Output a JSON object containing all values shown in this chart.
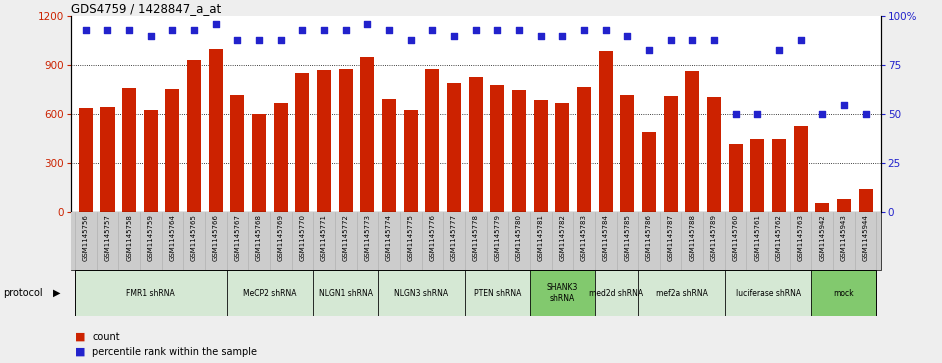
{
  "title": "GDS4759 / 1428847_a_at",
  "samples": [
    "GSM1145756",
    "GSM1145757",
    "GSM1145758",
    "GSM1145759",
    "GSM1145764",
    "GSM1145765",
    "GSM1145766",
    "GSM1145767",
    "GSM1145768",
    "GSM1145769",
    "GSM1145770",
    "GSM1145771",
    "GSM1145772",
    "GSM1145773",
    "GSM1145774",
    "GSM1145775",
    "GSM1145776",
    "GSM1145777",
    "GSM1145778",
    "GSM1145779",
    "GSM1145780",
    "GSM1145781",
    "GSM1145782",
    "GSM1145783",
    "GSM1145784",
    "GSM1145785",
    "GSM1145786",
    "GSM1145787",
    "GSM1145788",
    "GSM1145789",
    "GSM1145760",
    "GSM1145761",
    "GSM1145762",
    "GSM1145763",
    "GSM1145942",
    "GSM1145943",
    "GSM1145944"
  ],
  "counts": [
    638,
    648,
    762,
    626,
    755,
    930,
    1000,
    718,
    600,
    670,
    855,
    870,
    880,
    950,
    695,
    625,
    880,
    790,
    830,
    780,
    750,
    690,
    670,
    770,
    990,
    720,
    490,
    710,
    865,
    705,
    420,
    450,
    450,
    530,
    55,
    80,
    145
  ],
  "percentiles": [
    93,
    93,
    93,
    90,
    93,
    93,
    96,
    88,
    88,
    88,
    93,
    93,
    93,
    96,
    93,
    88,
    93,
    90,
    93,
    93,
    93,
    90,
    90,
    93,
    93,
    90,
    83,
    88,
    88,
    88,
    50,
    50,
    83,
    88,
    50,
    55,
    50
  ],
  "protocols": [
    {
      "label": "FMR1 shRNA",
      "start": 0,
      "end": 7,
      "color": "#d5e8d4"
    },
    {
      "label": "MeCP2 shRNA",
      "start": 7,
      "end": 11,
      "color": "#d5e8d4"
    },
    {
      "label": "NLGN1 shRNA",
      "start": 11,
      "end": 14,
      "color": "#d5e8d4"
    },
    {
      "label": "NLGN3 shRNA",
      "start": 14,
      "end": 18,
      "color": "#d5e8d4"
    },
    {
      "label": "PTEN shRNA",
      "start": 18,
      "end": 21,
      "color": "#d5e8d4"
    },
    {
      "label": "SHANK3\nshRNA",
      "start": 21,
      "end": 24,
      "color": "#82c96e"
    },
    {
      "label": "med2d shRNA",
      "start": 24,
      "end": 26,
      "color": "#d5e8d4"
    },
    {
      "label": "mef2a shRNA",
      "start": 26,
      "end": 30,
      "color": "#d5e8d4"
    },
    {
      "label": "luciferase shRNA",
      "start": 30,
      "end": 34,
      "color": "#d5e8d4"
    },
    {
      "label": "mock",
      "start": 34,
      "end": 37,
      "color": "#82c96e"
    }
  ],
  "bar_color": "#cc2200",
  "dot_color": "#2222cc",
  "ylim_left": [
    0,
    1200
  ],
  "ylim_right": [
    0,
    100
  ],
  "yticks_left": [
    0,
    300,
    600,
    900,
    1200
  ],
  "yticks_right": [
    0,
    25,
    50,
    75,
    100
  ],
  "grid_values": [
    300,
    600,
    900
  ],
  "fig_bg": "#eeeeee",
  "plot_bg": "#ffffff",
  "xticklabel_bg": "#cccccc"
}
